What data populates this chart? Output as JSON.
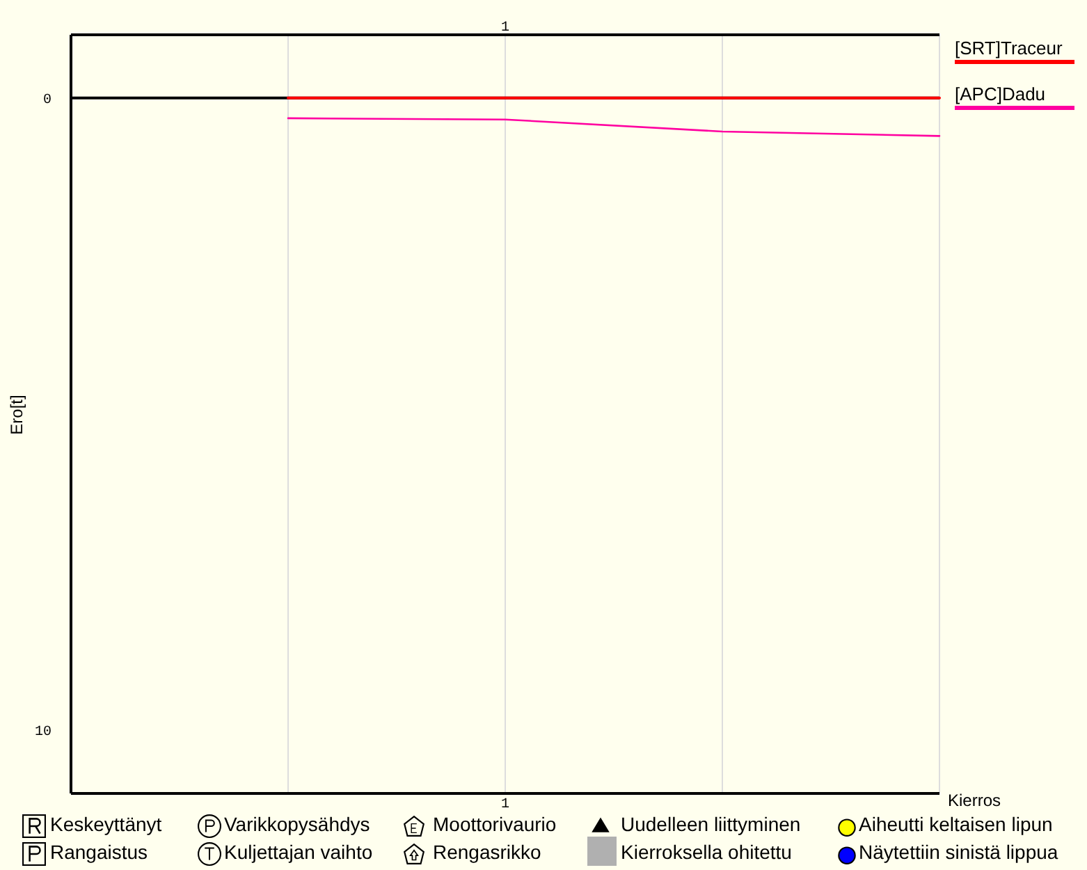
{
  "chart_data": {
    "type": "line",
    "ylabel": "Ero[t]",
    "xlabel": "Kierros",
    "categories": [
      null,
      null,
      "1",
      null,
      null
    ],
    "series": [
      {
        "name": "[SRT]Traceur",
        "color": "#ff0000",
        "values": [
          null,
          0,
          0,
          0,
          0
        ]
      },
      {
        "name": "[APC]Dadu",
        "color": "#ff00a0",
        "values": [
          null,
          0.32,
          0.34,
          0.53,
          0.6
        ]
      }
    ],
    "ylim": [
      11,
      -1
    ],
    "yticks": [
      0,
      10
    ],
    "grid": true,
    "legend": "top right",
    "marker": "none",
    "line_style": "solid",
    "ref_lines": [
      {
        "axis": "y",
        "value": 0,
        "color": "#000000"
      }
    ],
    "annotations": [
      "Keskeyttänyt",
      "Varikkopysähdys",
      "Moottorivaurio",
      "Uudelleen liittyminen",
      "Aiheutti keltaisen lipun",
      "Rangaistus",
      "Kuljettajan vaihto",
      "Rengasrikko",
      "Kierroksella ohitettu",
      "Näytettiin sinistä lippua"
    ]
  }
}
